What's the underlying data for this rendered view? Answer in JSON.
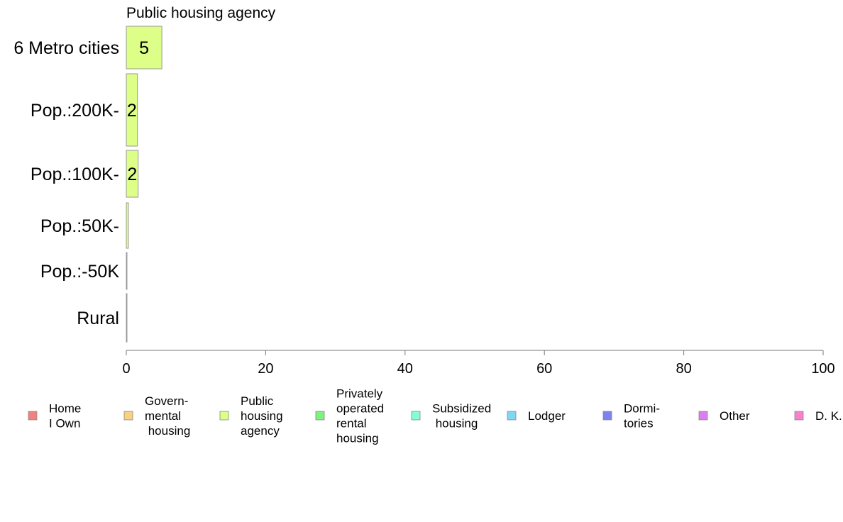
{
  "chart_data": {
    "type": "bar",
    "orientation": "horizontal",
    "title": "Public housing agency",
    "categories": [
      "6 Metro cities",
      "Pop.:200K-",
      "Pop.:100K-",
      "Pop.:50K-",
      "Pop.:-50K",
      "Rural"
    ],
    "series": [
      {
        "name": "Public housing agency",
        "values": [
          5.1,
          1.6,
          1.7,
          0.3,
          0.1,
          0.1
        ]
      }
    ],
    "value_labels": [
      "5",
      "2",
      "2",
      "",
      "",
      ""
    ],
    "xlim": [
      0,
      100
    ],
    "xticks": [
      0,
      20,
      40,
      60,
      80,
      100
    ],
    "xlabel": "",
    "ylabel": "",
    "grid": false,
    "bar_color": "#DDFF88",
    "bar_stroke": "#999999",
    "legend": {
      "placement": "bottom",
      "items": [
        {
          "lines": [
            "Home",
            "I Own"
          ],
          "color": "#F28080"
        },
        {
          "lines": [
            "Govern-",
            "mental",
            " housing"
          ],
          "color": "#F9D27F"
        },
        {
          "lines": [
            "Public",
            "housing",
            "agency"
          ],
          "color": "#DDFF88"
        },
        {
          "lines": [
            "Privately",
            "operated",
            "rental",
            "housing"
          ],
          "color": "#80F080"
        },
        {
          "lines": [
            "Subsidized",
            " housing"
          ],
          "color": "#80FFD8"
        },
        {
          "lines": [
            "Lodger"
          ],
          "color": "#80D8F0"
        },
        {
          "lines": [
            "Dormi-",
            "tories"
          ],
          "color": "#8080F0"
        },
        {
          "lines": [
            "Other"
          ],
          "color": "#D880F0"
        },
        {
          "lines": [
            "D. K."
          ],
          "color": "#F880D0"
        }
      ]
    }
  }
}
